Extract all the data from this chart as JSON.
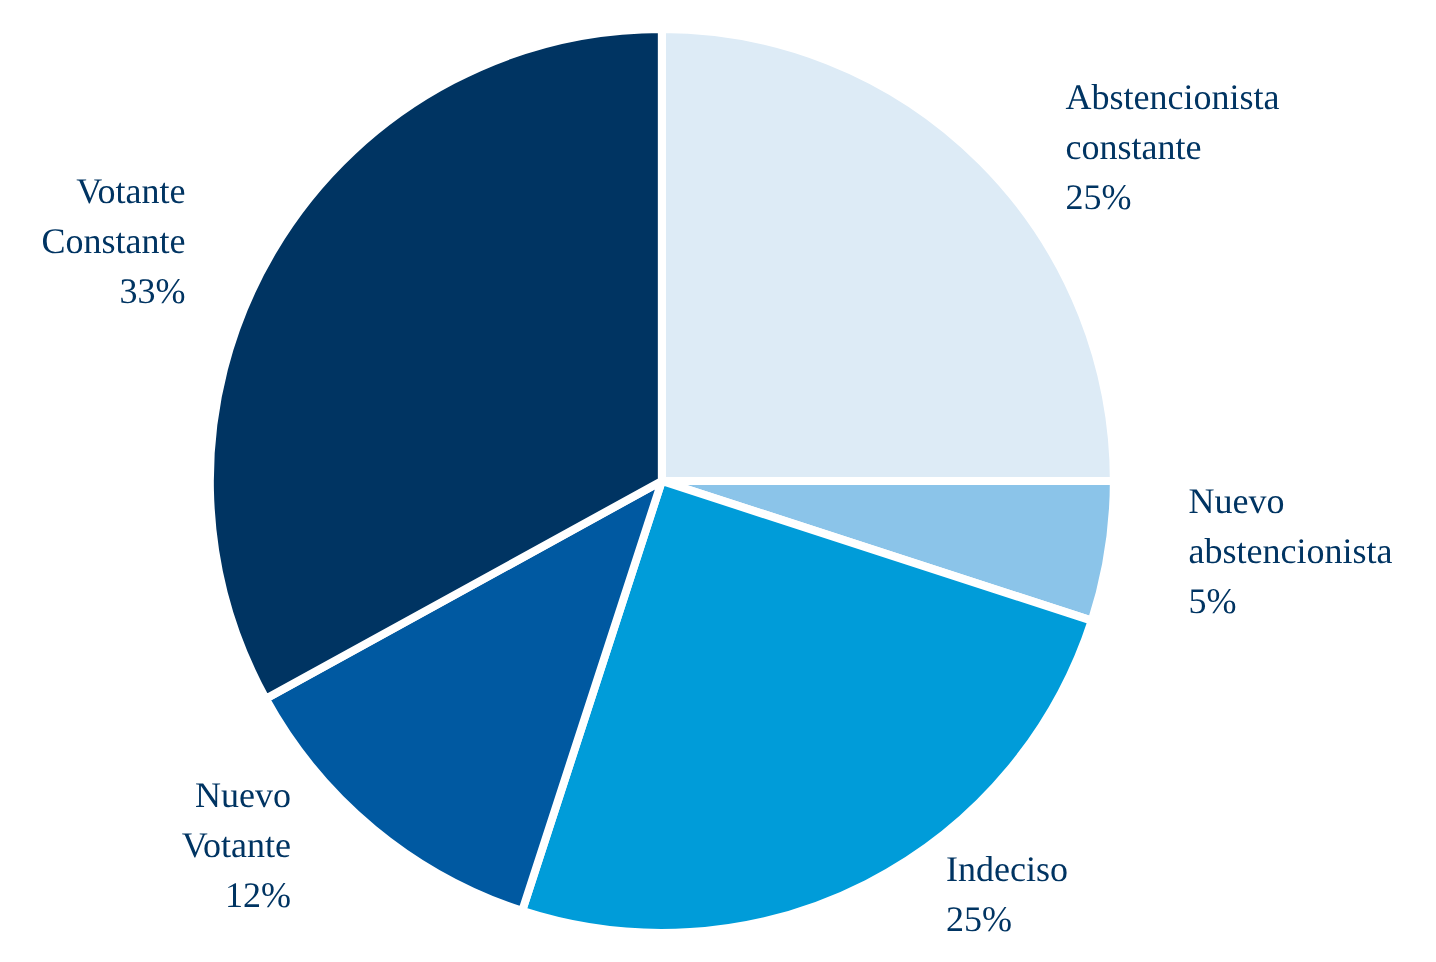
{
  "chart_data": {
    "type": "pie",
    "categories": [
      "Abstencionista constante",
      "Nuevo abstencionista",
      "Indeciso",
      "Nuevo Votante",
      "Votante Constante"
    ],
    "values": [
      25,
      5,
      25,
      12,
      33
    ],
    "colors": [
      "#ddebf6",
      "#8bc4e9",
      "#009cd9",
      "#0059a1",
      "#003462"
    ],
    "value_labels": [
      "25%",
      "5%",
      "25%",
      "12%",
      "33%"
    ]
  }
}
